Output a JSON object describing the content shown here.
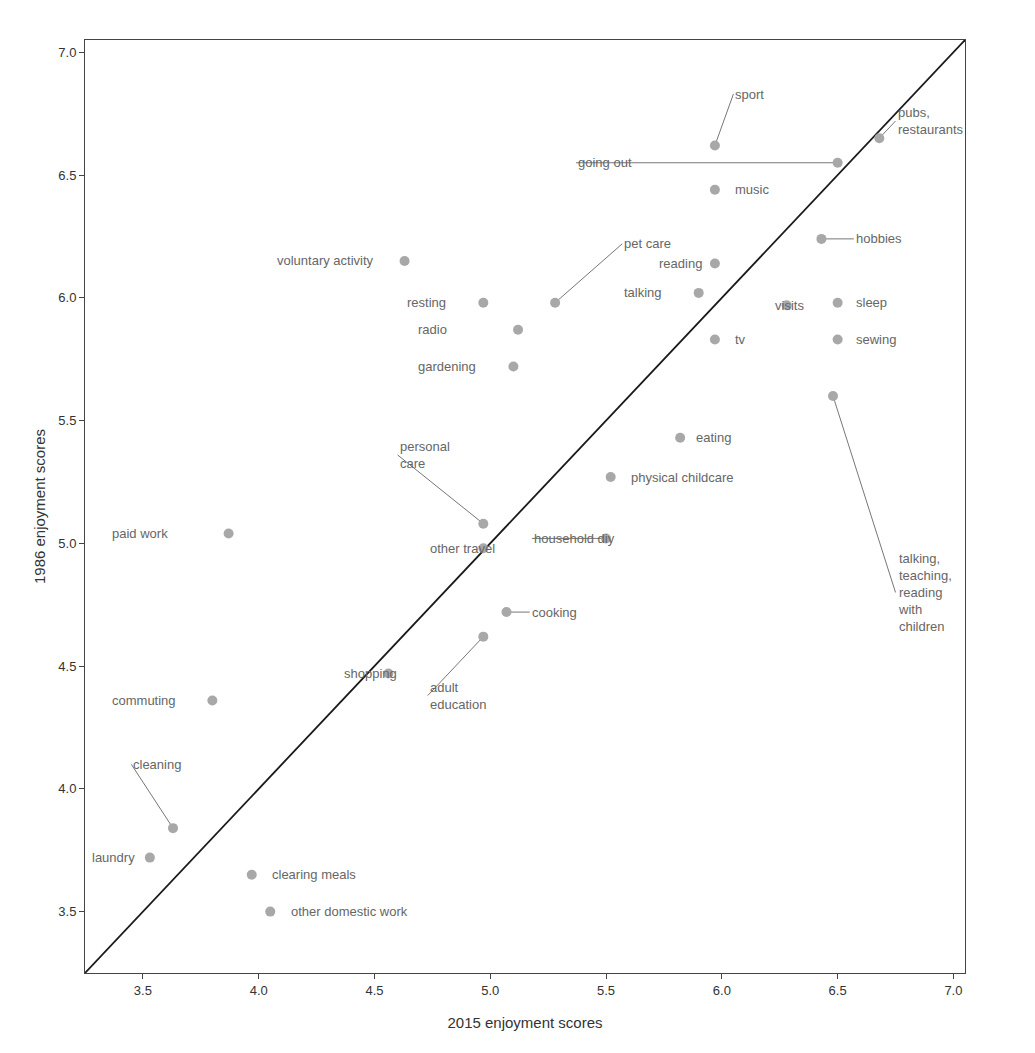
{
  "chart_data": {
    "type": "scatter",
    "xlabel": "2015 enjoyment scores",
    "ylabel": "1986 enjoyment scores",
    "xlim": [
      3.25,
      7.05
    ],
    "ylim": [
      3.25,
      7.05
    ],
    "xticks": [
      3.5,
      {
        "value": 4.0,
        "label": "4.0"
      },
      4.5,
      {
        "value": 5.0,
        "label": "5.0"
      },
      5.5,
      {
        "value": 6.0,
        "label": "6.0"
      },
      6.5,
      {
        "value": 7.0,
        "label": "7.0"
      }
    ],
    "yticks": [
      3.5,
      {
        "value": 4.0,
        "label": "4.0"
      },
      4.5,
      {
        "value": 5.0,
        "label": "5.0"
      },
      5.5,
      {
        "value": 6.0,
        "label": "6.0"
      },
      6.5,
      {
        "value": 7.0,
        "label": "7.0"
      }
    ],
    "grid": false,
    "annotation_color": "#666666",
    "series": [
      {
        "type": "line",
        "color": "#1a1a1a",
        "x": [
          3.25,
          7.05
        ],
        "values": [
          3.25,
          7.05
        ]
      },
      {
        "type": "scatter",
        "color": "#a8a8a8",
        "x": [
          3.53,
          3.63,
          3.97,
          4.05,
          3.8,
          3.87,
          4.56,
          4.97,
          4.97,
          5.07,
          4.97,
          5.5,
          5.52,
          5.1,
          5.12,
          4.97,
          4.63,
          5.82,
          5.97,
          6.5,
          5.9,
          6.28,
          6.5,
          5.28,
          5.97,
          5.97,
          6.43,
          6.5,
          5.97,
          6.68,
          6.48
        ],
        "values": [
          3.72,
          3.84,
          3.65,
          3.5,
          4.36,
          5.04,
          4.47,
          5.08,
          4.98,
          4.72,
          4.62,
          5.02,
          5.27,
          5.72,
          5.87,
          5.98,
          6.15,
          5.43,
          5.83,
          5.83,
          6.02,
          5.97,
          5.98,
          5.98,
          6.14,
          6.44,
          6.24,
          6.55,
          6.62,
          6.65,
          5.6
        ],
        "labels": [
          "laundry",
          "cleaning",
          "clearing meals",
          "other domestic work",
          "commuting",
          "paid work",
          "shopping",
          "personal\ncare",
          "other travel",
          "cooking",
          "adult\neducation",
          "household diy",
          "physical childcare",
          "gardening",
          "radio",
          "resting",
          "voluntary activity",
          "eating",
          "tv",
          "sewing",
          "talking",
          "visits",
          "sleep",
          "pet care",
          "reading",
          "music",
          "hobbies",
          "going out",
          "sport",
          "pubs,\nrestaurants",
          "talking,\nteaching,\nreading\nwith\nchildren"
        ],
        "label_x": [
          3.27,
          3.45,
          4.05,
          4.13,
          3.36,
          3.36,
          4.36,
          4.6,
          4.73,
          5.17,
          4.73,
          5.18,
          5.6,
          4.68,
          4.68,
          4.63,
          4.07,
          5.88,
          6.05,
          6.57,
          5.57,
          6.22,
          6.57,
          5.57,
          5.72,
          6.05,
          6.57,
          5.37,
          6.05,
          6.75,
          6.75
        ],
        "label_y": [
          3.72,
          4.1,
          3.65,
          3.5,
          4.36,
          5.04,
          4.47,
          5.36,
          4.98,
          4.72,
          4.38,
          5.02,
          5.27,
          5.72,
          5.87,
          5.98,
          6.15,
          5.43,
          5.83,
          5.83,
          6.02,
          5.97,
          5.98,
          6.22,
          6.14,
          6.44,
          6.24,
          6.55,
          6.83,
          6.72,
          4.8
        ],
        "connector": [
          false,
          true,
          false,
          false,
          false,
          false,
          false,
          true,
          false,
          true,
          true,
          true,
          false,
          false,
          false,
          false,
          false,
          false,
          false,
          false,
          false,
          false,
          false,
          true,
          false,
          false,
          true,
          true,
          true,
          true,
          true
        ]
      }
    ]
  }
}
